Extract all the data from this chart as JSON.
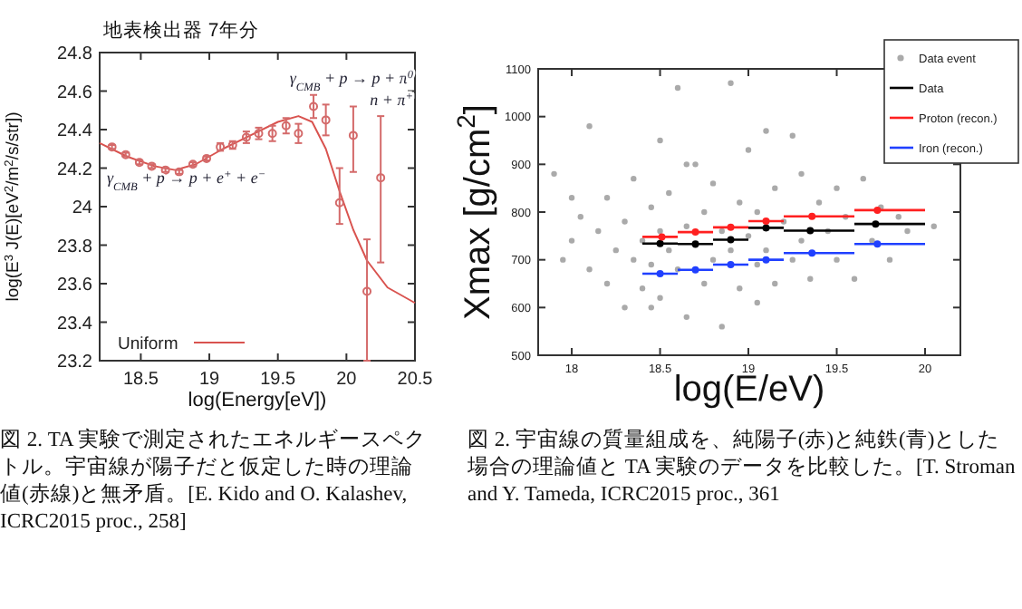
{
  "chart_data": [
    {
      "type": "line",
      "title": "地表検出器 7年分",
      "xlabel": "log(Energy[eV])",
      "ylabel": "log(E$^{3}$ J(E)[eV$^{2}$/m$^{2}$/s/str])",
      "xlim": [
        18.2,
        20.5
      ],
      "ylim": [
        23.2,
        24.8
      ],
      "xticks": [
        18.5,
        19,
        19.5,
        20,
        20.5
      ],
      "yticks": [
        23.2,
        23.4,
        23.6,
        23.8,
        24,
        24.2,
        24.4,
        24.6,
        24.8
      ],
      "legend": "bottom left",
      "grid": false,
      "annotations": [
        "γ$_{CMB}$ + p → p + π$^{0}$",
        "n + π$^{+}$",
        "γ$_{CMB}$ + p → p + e$^{+}$ + e$^{−}$",
        "図 2. TA 実験で測定されたエネルギースペクトル。宇宙線が陽子だと仮定した時の理論値(赤線)と無矛盾。[E. Kido and O. Kalashev, ICRC2015 proc., 258]"
      ],
      "series": [
        {
          "name": "Uniform",
          "type": "line",
          "color": "#d9534f",
          "x": [
            18.2,
            18.4,
            18.6,
            18.75,
            18.9,
            19.1,
            19.3,
            19.5,
            19.65,
            19.75,
            19.85,
            19.95,
            20.05,
            20.15,
            20.3,
            20.5
          ],
          "values": [
            24.33,
            24.26,
            24.21,
            24.19,
            24.22,
            24.3,
            24.37,
            24.44,
            24.47,
            24.44,
            24.3,
            24.08,
            23.88,
            23.72,
            23.58,
            23.5
          ]
        },
        {
          "type": "scatter",
          "marker": "circle",
          "color": "#d46a6a",
          "x": [
            18.29,
            18.39,
            18.49,
            18.58,
            18.68,
            18.78,
            18.88,
            18.98,
            19.08,
            19.17,
            19.27,
            19.36,
            19.46,
            19.56,
            19.65,
            19.76,
            19.85,
            19.95,
            20.05,
            20.15,
            20.25
          ],
          "values": [
            24.31,
            24.27,
            24.23,
            24.21,
            24.19,
            24.18,
            24.22,
            24.25,
            24.31,
            24.32,
            24.36,
            24.38,
            24.38,
            24.42,
            24.38,
            24.52,
            24.45,
            24.02,
            24.37,
            23.56,
            24.15
          ],
          "errors": [
            0.01,
            0.01,
            0.01,
            0.01,
            0.01,
            0.01,
            0.01,
            0.01,
            0.02,
            0.02,
            0.03,
            0.03,
            0.04,
            0.04,
            0.05,
            0.06,
            0.08,
            [
              23.91,
              24.2
            ],
            [
              24.18,
              24.52
            ],
            [
              23.2,
              23.83
            ],
            [
              23.71,
              24.47
            ]
          ]
        }
      ]
    },
    {
      "type": "scatter",
      "xlabel": "log(E/eV)",
      "ylabel": "Xmax [g/cm$^{2}$]",
      "xlim": [
        17.81,
        20.2
      ],
      "ylim": [
        500,
        1100
      ],
      "xticks": [
        18,
        18.5,
        19,
        19.5,
        20
      ],
      "yticks": [
        500,
        600,
        700,
        800,
        900,
        1000,
        1100
      ],
      "legend": "top right",
      "grid": false,
      "marker": "circle",
      "annotations": [
        "図 2. 宇宙線の質量組成を、純陽子(赤)と純鉄(青)とした場合の理論値と TA 実験のデータを比較した。[T. Stroman and Y. Tameda, ICRC2015 proc., 361"
      ],
      "series": [
        {
          "name": "Data event",
          "type": "scatter",
          "color": "#aaaaaa",
          "x": [
            17.9,
            17.95,
            18.0,
            18.05,
            18.1,
            18.1,
            18.15,
            18.2,
            18.2,
            18.25,
            18.3,
            18.3,
            18.35,
            18.35,
            18.4,
            18.4,
            18.45,
            18.45,
            18.5,
            18.5,
            18.5,
            18.55,
            18.55,
            18.6,
            18.6,
            18.65,
            18.65,
            18.7,
            18.7,
            18.75,
            18.75,
            18.8,
            18.8,
            18.85,
            18.85,
            18.9,
            18.9,
            18.95,
            18.95,
            19.0,
            19.0,
            19.05,
            19.05,
            19.1,
            19.1,
            19.15,
            19.15,
            19.2,
            19.25,
            19.3,
            19.3,
            19.35,
            19.4,
            19.45,
            19.5,
            19.5,
            19.55,
            19.6,
            19.65,
            19.7,
            19.75,
            19.8,
            19.85,
            19.9,
            20.05,
            18.0,
            18.45,
            18.65,
            19.05,
            19.25
          ],
          "values": [
            880,
            700,
            740,
            790,
            680,
            980,
            760,
            830,
            650,
            720,
            600,
            780,
            700,
            870,
            740,
            640,
            810,
            690,
            760,
            950,
            620,
            720,
            840,
            680,
            1060,
            770,
            580,
            730,
            900,
            650,
            800,
            700,
            860,
            760,
            560,
            1070,
            720,
            820,
            640,
            750,
            930,
            690,
            800,
            970,
            720,
            850,
            650,
            780,
            700,
            880,
            740,
            660,
            820,
            760,
            700,
            850,
            790,
            660,
            870,
            740,
            810,
            700,
            790,
            760,
            770,
            830,
            600,
            900,
            610,
            960
          ]
        },
        {
          "name": "Data",
          "type": "scatter",
          "color": "#000000",
          "x": [
            18.5,
            18.7,
            18.9,
            19.1,
            19.35,
            19.72
          ],
          "values": [
            734,
            733,
            742,
            767,
            761,
            775
          ],
          "xerrors": [
            [
              18.4,
              18.6
            ],
            [
              18.6,
              18.8
            ],
            [
              18.8,
              19.0
            ],
            [
              19.0,
              19.2
            ],
            [
              19.2,
              19.6
            ],
            [
              19.6,
              20.0
            ]
          ]
        },
        {
          "name": "Proton (recon.)",
          "type": "scatter",
          "color": "#ff2020",
          "x": [
            18.51,
            18.7,
            18.9,
            19.1,
            19.36,
            19.73
          ],
          "values": [
            748,
            758,
            768,
            781,
            791,
            804
          ],
          "xerrors": [
            [
              18.4,
              18.6
            ],
            [
              18.6,
              18.8
            ],
            [
              18.8,
              19.0
            ],
            [
              19.0,
              19.2
            ],
            [
              19.2,
              19.6
            ],
            [
              19.6,
              20.0
            ]
          ]
        },
        {
          "name": "Iron (recon.)",
          "type": "scatter",
          "color": "#2040ff",
          "x": [
            18.5,
            18.7,
            18.9,
            19.1,
            19.36,
            19.73
          ],
          "values": [
            671,
            679,
            690,
            700,
            714,
            733
          ],
          "xerrors": [
            [
              18.4,
              18.6
            ],
            [
              18.6,
              18.8
            ],
            [
              18.8,
              19.0
            ],
            [
              19.0,
              19.2
            ],
            [
              19.2,
              19.6
            ],
            [
              19.6,
              20.0
            ]
          ]
        }
      ]
    }
  ]
}
